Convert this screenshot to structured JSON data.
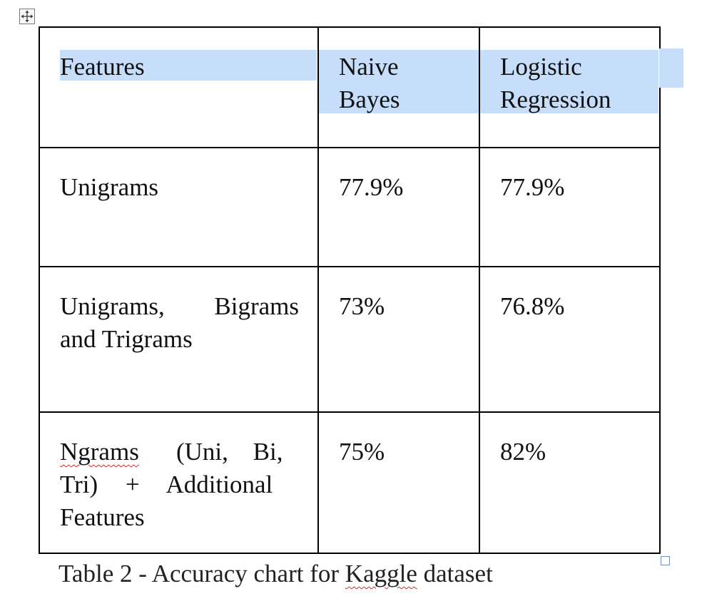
{
  "table": {
    "headers": [
      "Features",
      "Naive Bayes",
      "Logistic Regression"
    ],
    "header_lines": {
      "naive": [
        "Naive",
        "Bayes"
      ],
      "logistic": [
        "Logistic",
        "Regression"
      ]
    },
    "rows": [
      {
        "feature": "Unigrams",
        "naive_bayes": "77.9%",
        "logistic_regression": "77.9%"
      },
      {
        "feature_line1": "Unigrams, Bigrams",
        "feature_line2": "and Trigrams",
        "naive_bayes": "73%",
        "logistic_regression": "76.8%"
      },
      {
        "feature_line1_word1": "Ngrams",
        "feature_line1_rest": "(Uni, Bi,",
        "feature_line2": "Tri) + Additional",
        "feature_line3": "Features",
        "naive_bayes": "75%",
        "logistic_regression": "82%"
      }
    ]
  },
  "caption": {
    "prefix": "Table 2 - Accuracy chart for ",
    "misspelled": "Kaggle",
    "suffix": " dataset"
  },
  "colors": {
    "selection_highlight": "#c6defa",
    "spellcheck_underline": "#d62b2b",
    "border": "#000000"
  },
  "icons": {
    "move_handle": "four-way-arrow-icon",
    "resize_handle": "resize-square-icon"
  }
}
